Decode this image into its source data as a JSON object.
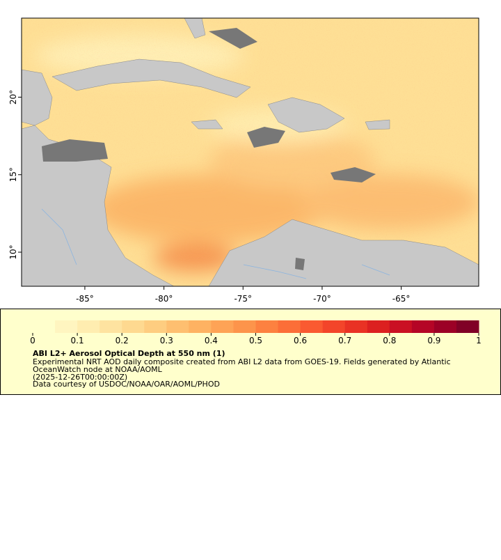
{
  "map": {
    "xlim": [
      -89,
      -60.1
    ],
    "ylim": [
      7.8,
      25.1
    ],
    "xticks": [
      {
        "value": -85,
        "label": "-85°"
      },
      {
        "value": -80,
        "label": "-80°"
      },
      {
        "value": -75,
        "label": "-75°"
      },
      {
        "value": -70,
        "label": "-70°"
      },
      {
        "value": -65,
        "label": "-65°"
      }
    ],
    "yticks": [
      {
        "value": 10,
        "label": "10°"
      },
      {
        "value": 15,
        "label": "15°"
      },
      {
        "value": 20,
        "label": "20°"
      }
    ]
  },
  "colorbar": {
    "range": [
      0,
      1
    ],
    "ticks": [
      0,
      0.1,
      0.2,
      0.3,
      0.4,
      0.5,
      0.6,
      0.7,
      0.8,
      0.9,
      1
    ],
    "colors": [
      "#ffffcc",
      "#fff5c0",
      "#ffedb0",
      "#fee3a0",
      "#fed990",
      "#fecd80",
      "#febf70",
      "#feb262",
      "#fea356",
      "#fd944b",
      "#fd8140",
      "#fc6e38",
      "#fa5a31",
      "#f3452a",
      "#e93224",
      "#dc2020",
      "#ca1023",
      "#b50526",
      "#9c0026",
      "#800026"
    ]
  },
  "legend": {
    "title": "ABI L2+ Aerosol Optical Depth at 550 nm (1)",
    "lines": [
      "Experimental NRT AOD daily composite created from ABI L2 data from GOES-19. Fields generated by Atlantic",
      "OceanWatch node at NOAA/AOML",
      "(2025-12-26T00:00:00Z)",
      "Data courtesy of USDOC/NOAA/OAR/AOML/PHOD"
    ]
  }
}
